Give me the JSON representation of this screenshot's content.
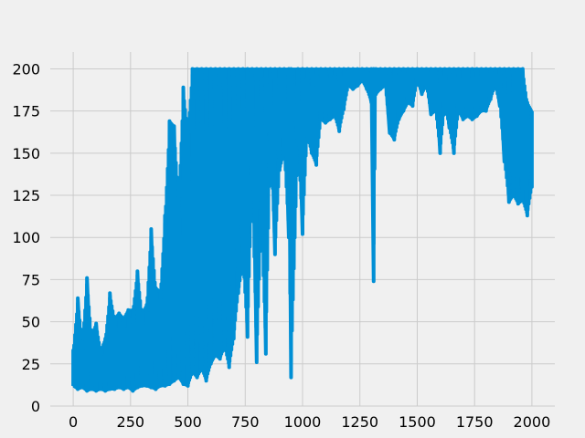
{
  "chart_data": {
    "type": "line",
    "title": "",
    "xlabel": "",
    "ylabel": "",
    "xlim": [
      -100,
      2100
    ],
    "ylim": [
      0,
      210
    ],
    "xticks": [
      0,
      250,
      500,
      750,
      1000,
      1250,
      1500,
      1750,
      2000
    ],
    "yticks": [
      0,
      25,
      50,
      75,
      100,
      125,
      150,
      175,
      200
    ],
    "xtick_labels": [
      "0",
      "250",
      "500",
      "750",
      "1000",
      "1250",
      "1500",
      "1750",
      "2000"
    ],
    "ytick_labels": [
      "0",
      "25",
      "50",
      "75",
      "100",
      "125",
      "150",
      "175",
      "200"
    ],
    "grid": true,
    "legend": "none",
    "background_color": "#f0f0f0",
    "series": [
      {
        "color": "#008fd5",
        "envelope": [
          [
            0,
            12,
            33
          ],
          [
            20,
            10,
            64
          ],
          [
            40,
            11,
            38
          ],
          [
            60,
            9,
            76
          ],
          [
            80,
            10,
            42
          ],
          [
            100,
            9,
            49
          ],
          [
            120,
            10,
            33
          ],
          [
            140,
            9,
            40
          ],
          [
            160,
            10,
            67
          ],
          [
            180,
            10,
            52
          ],
          [
            200,
            11,
            55
          ],
          [
            220,
            10,
            52
          ],
          [
            240,
            11,
            57
          ],
          [
            260,
            9,
            57
          ],
          [
            280,
            11,
            80
          ],
          [
            300,
            12,
            55
          ],
          [
            320,
            12,
            60
          ],
          [
            340,
            11,
            105
          ],
          [
            360,
            10,
            70
          ],
          [
            380,
            12,
            68
          ],
          [
            400,
            12,
            113
          ],
          [
            420,
            13,
            169
          ],
          [
            440,
            15,
            166
          ],
          [
            460,
            17,
            123
          ],
          [
            480,
            13,
            189
          ],
          [
            500,
            12,
            163
          ],
          [
            520,
            20,
            200
          ],
          [
            540,
            17,
            200
          ],
          [
            560,
            22,
            200
          ],
          [
            580,
            15,
            200
          ],
          [
            600,
            25,
            200
          ],
          [
            620,
            30,
            200
          ],
          [
            640,
            28,
            200
          ],
          [
            660,
            35,
            200
          ],
          [
            680,
            23,
            200
          ],
          [
            700,
            40,
            200
          ],
          [
            720,
            67,
            200
          ],
          [
            740,
            85,
            200
          ],
          [
            760,
            41,
            200
          ],
          [
            780,
            130,
            200
          ],
          [
            800,
            26,
            200
          ],
          [
            820,
            108,
            200
          ],
          [
            840,
            31,
            200
          ],
          [
            860,
            155,
            200
          ],
          [
            880,
            90,
            200
          ],
          [
            900,
            140,
            200
          ],
          [
            920,
            150,
            200
          ],
          [
            940,
            100,
            200
          ],
          [
            950,
            17,
            200
          ],
          [
            980,
            155,
            200
          ],
          [
            1000,
            102,
            200
          ],
          [
            1020,
            160,
            200
          ],
          [
            1040,
            150,
            200
          ],
          [
            1060,
            143,
            200
          ],
          [
            1080,
            170,
            200
          ],
          [
            1100,
            168,
            200
          ],
          [
            1120,
            170,
            200
          ],
          [
            1140,
            172,
            200
          ],
          [
            1160,
            163,
            200
          ],
          [
            1180,
            176,
            200
          ],
          [
            1200,
            190,
            200
          ],
          [
            1220,
            188,
            200
          ],
          [
            1240,
            190,
            200
          ],
          [
            1260,
            193,
            200
          ],
          [
            1280,
            188,
            200
          ],
          [
            1300,
            180,
            200
          ],
          [
            1310,
            74,
            200
          ],
          [
            1320,
            185,
            200
          ],
          [
            1340,
            188,
            200
          ],
          [
            1360,
            190,
            200
          ],
          [
            1380,
            162,
            200
          ],
          [
            1400,
            158,
            200
          ],
          [
            1420,
            170,
            200
          ],
          [
            1440,
            175,
            200
          ],
          [
            1460,
            180,
            200
          ],
          [
            1480,
            178,
            200
          ],
          [
            1500,
            193,
            200
          ],
          [
            1520,
            185,
            200
          ],
          [
            1540,
            190,
            200
          ],
          [
            1560,
            173,
            200
          ],
          [
            1580,
            175,
            200
          ],
          [
            1600,
            150,
            200
          ],
          [
            1620,
            178,
            200
          ],
          [
            1640,
            165,
            200
          ],
          [
            1660,
            150,
            200
          ],
          [
            1680,
            175,
            200
          ],
          [
            1700,
            170,
            200
          ],
          [
            1720,
            172,
            200
          ],
          [
            1740,
            170,
            200
          ],
          [
            1760,
            172,
            200
          ],
          [
            1780,
            175,
            200
          ],
          [
            1800,
            175,
            200
          ],
          [
            1820,
            182,
            200
          ],
          [
            1840,
            190,
            200
          ],
          [
            1860,
            178,
            200
          ],
          [
            1880,
            145,
            200
          ],
          [
            1900,
            121,
            200
          ],
          [
            1920,
            125,
            200
          ],
          [
            1940,
            120,
            200
          ],
          [
            1960,
            122,
            200
          ],
          [
            1980,
            113,
            180
          ],
          [
            2000,
            130,
            175
          ]
        ]
      }
    ]
  }
}
